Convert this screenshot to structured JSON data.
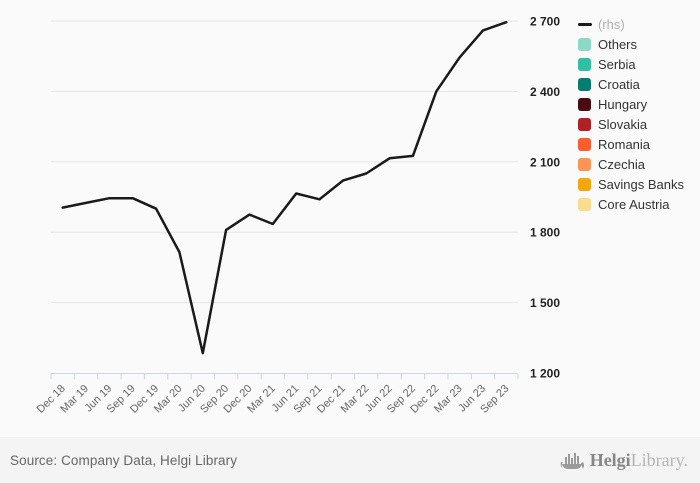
{
  "chart_data": {
    "type": "line",
    "title": "",
    "categories": [
      "Dec 18",
      "Mar 19",
      "Jun 19",
      "Sep 19",
      "Dec 19",
      "Mar 20",
      "Jun 20",
      "Sep 20",
      "Dec 20",
      "Mar 21",
      "Jun 21",
      "Sep 21",
      "Dec 21",
      "Mar 22",
      "Jun 22",
      "Sep 22",
      "Dec 22",
      "Mar 23",
      "Jun 23",
      "Sep 23"
    ],
    "series": [
      {
        "name": "(rhs)",
        "color": "#1a1a1a",
        "axis": "right",
        "values": [
          1905,
          1925,
          1945,
          1945,
          1900,
          1715,
          1285,
          1810,
          1875,
          1835,
          1965,
          1940,
          2020,
          2050,
          2115,
          2125,
          2400,
          2545,
          2660,
          2695
        ]
      }
    ],
    "ylim": [
      1200,
      2700
    ],
    "ytick_step": 300,
    "ytick_labels": [
      "1 200",
      "1 500",
      "1 800",
      "2 100",
      "2 400",
      "2 700"
    ],
    "y_axis_side": "right",
    "grid": true,
    "legend_position": "right",
    "colors": {
      "gridline": "#e6e6e6",
      "axis_line": "#ccd6eb",
      "x_label": "#666666",
      "y_label": "#222222",
      "background": "#fafafa"
    }
  },
  "legend": {
    "items": [
      {
        "label": "(rhs)",
        "swatch": "line",
        "color": "#1a1a1a",
        "label_color": "#b0b0b0"
      },
      {
        "label": "Others",
        "swatch": "square",
        "color": "#8cd9c6"
      },
      {
        "label": "Serbia",
        "swatch": "square",
        "color": "#2ebfa5"
      },
      {
        "label": "Croatia",
        "swatch": "square",
        "color": "#077d70"
      },
      {
        "label": "Hungary",
        "swatch": "square",
        "color": "#470b10"
      },
      {
        "label": "Slovakia",
        "swatch": "square",
        "color": "#b02126"
      },
      {
        "label": "Romania",
        "swatch": "square",
        "color": "#fb5d2c"
      },
      {
        "label": "Czechia",
        "swatch": "square",
        "color": "#fb9555"
      },
      {
        "label": "Savings Banks",
        "swatch": "square",
        "color": "#f3a70a"
      },
      {
        "label": "Core Austria",
        "swatch": "square",
        "color": "#fbdc8e"
      }
    ]
  },
  "footer": {
    "source": "Source: Company Data, Helgi Library",
    "logo_helgi": "Helgi",
    "logo_library": "Library."
  }
}
